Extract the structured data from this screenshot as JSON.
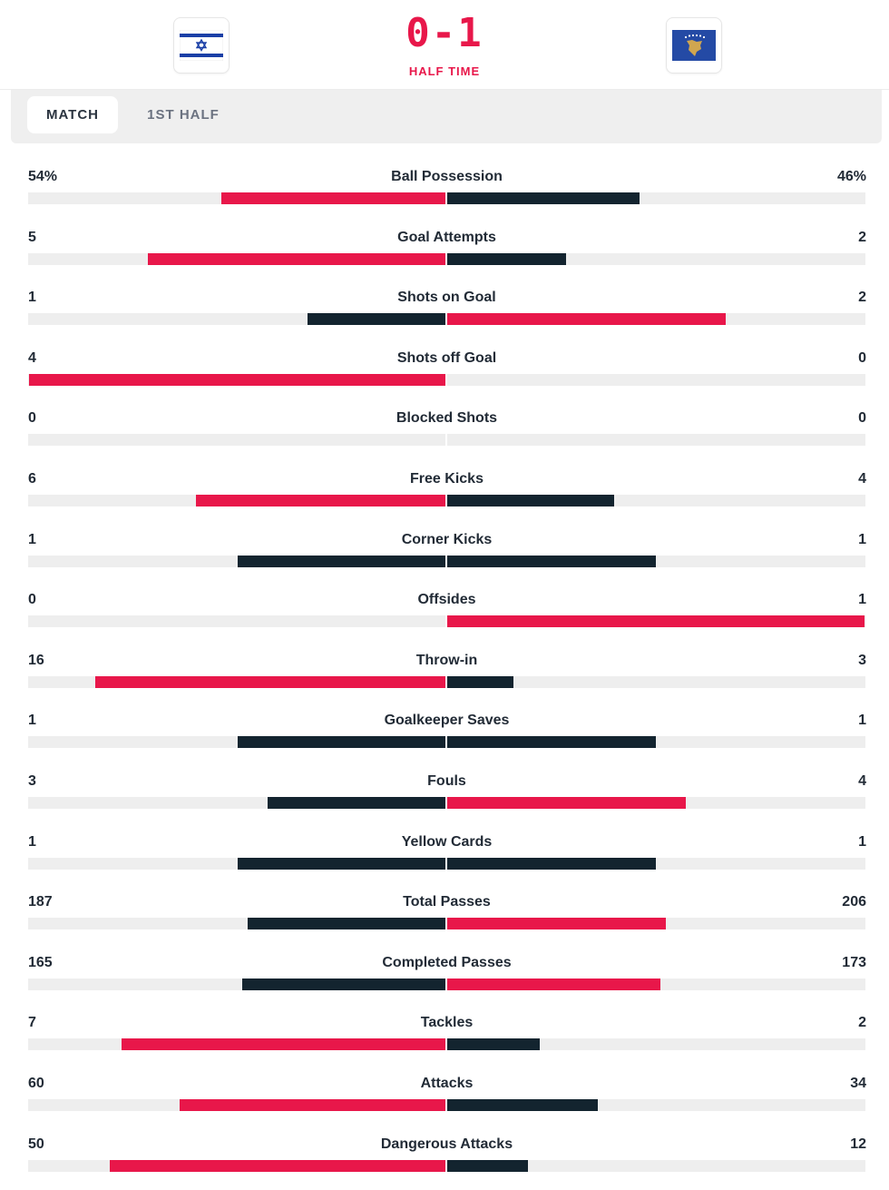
{
  "header": {
    "score": "0-1",
    "status": "HALF TIME",
    "home_flag": "israel-flag-icon",
    "away_flag": "kosovo-flag-icon"
  },
  "tabs": [
    {
      "label": "MATCH",
      "active": true
    },
    {
      "label": "1ST HALF",
      "active": false
    }
  ],
  "colors": {
    "leader": "#e8174a",
    "trailer": "#13242f",
    "track": "#eeeeee",
    "accent": "#e8174a"
  },
  "stats": [
    {
      "label": "Ball Possession",
      "home": "54%",
      "away": "46%",
      "home_value": 54,
      "away_value": 46
    },
    {
      "label": "Goal Attempts",
      "home": "5",
      "away": "2",
      "home_value": 5,
      "away_value": 2
    },
    {
      "label": "Shots on Goal",
      "home": "1",
      "away": "2",
      "home_value": 1,
      "away_value": 2
    },
    {
      "label": "Shots off Goal",
      "home": "4",
      "away": "0",
      "home_value": 4,
      "away_value": 0
    },
    {
      "label": "Blocked Shots",
      "home": "0",
      "away": "0",
      "home_value": 0,
      "away_value": 0
    },
    {
      "label": "Free Kicks",
      "home": "6",
      "away": "4",
      "home_value": 6,
      "away_value": 4
    },
    {
      "label": "Corner Kicks",
      "home": "1",
      "away": "1",
      "home_value": 1,
      "away_value": 1
    },
    {
      "label": "Offsides",
      "home": "0",
      "away": "1",
      "home_value": 0,
      "away_value": 1
    },
    {
      "label": "Throw-in",
      "home": "16",
      "away": "3",
      "home_value": 16,
      "away_value": 3
    },
    {
      "label": "Goalkeeper Saves",
      "home": "1",
      "away": "1",
      "home_value": 1,
      "away_value": 1
    },
    {
      "label": "Fouls",
      "home": "3",
      "away": "4",
      "home_value": 3,
      "away_value": 4
    },
    {
      "label": "Yellow Cards",
      "home": "1",
      "away": "1",
      "home_value": 1,
      "away_value": 1
    },
    {
      "label": "Total Passes",
      "home": "187",
      "away": "206",
      "home_value": 187,
      "away_value": 206
    },
    {
      "label": "Completed Passes",
      "home": "165",
      "away": "173",
      "home_value": 165,
      "away_value": 173
    },
    {
      "label": "Tackles",
      "home": "7",
      "away": "2",
      "home_value": 7,
      "away_value": 2
    },
    {
      "label": "Attacks",
      "home": "60",
      "away": "34",
      "home_value": 60,
      "away_value": 34
    },
    {
      "label": "Dangerous Attacks",
      "home": "50",
      "away": "12",
      "home_value": 50,
      "away_value": 12
    }
  ]
}
